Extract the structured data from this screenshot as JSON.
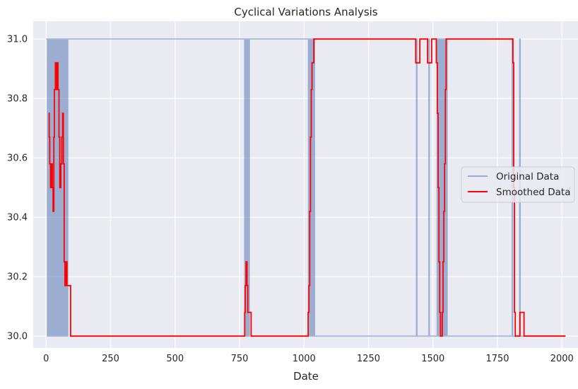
{
  "chart_data": {
    "type": "line",
    "title": "Cyclical Variations Analysis",
    "xlabel": "Date",
    "ylabel": "",
    "xlim": [
      -50,
      2065
    ],
    "ylim": [
      29.96,
      31.06
    ],
    "xticks": [
      0,
      250,
      500,
      750,
      1000,
      1250,
      1500,
      1750,
      2000
    ],
    "yticks": [
      30.0,
      30.2,
      30.4,
      30.6,
      30.8,
      31.0
    ],
    "grid": true,
    "legend_position": "center-right",
    "colors": {
      "plot_background": "#eaeaf2",
      "grid": "#ffffff",
      "original": "#4c72b0",
      "smoothed": "#ff0000"
    },
    "series": [
      {
        "name": "Original Data",
        "style": "alternating",
        "low": 30.0,
        "high": 31.0,
        "start_value": 31.0,
        "x_start": 0,
        "x_end": 2014,
        "flip_x": [
          5,
          9,
          13,
          16,
          19,
          22,
          25,
          28,
          31,
          34,
          37,
          40,
          43,
          46,
          49,
          52,
          55,
          58,
          61,
          64,
          67,
          70,
          73,
          76,
          80,
          84,
          770,
          773,
          776,
          780,
          784,
          788,
          1017,
          1020,
          1023,
          1026,
          1029,
          1032,
          1035,
          1038,
          1041,
          1436,
          1438,
          1484,
          1486,
          1516,
          1519,
          1522,
          1525,
          1528,
          1531,
          1534,
          1537,
          1540,
          1543,
          1546,
          1549,
          1552,
          1555,
          1807,
          1809,
          1836,
          1838
        ]
      },
      {
        "name": "Smoothed Data",
        "style": "step",
        "points": [
          [
            10,
            30.75
          ],
          [
            12,
            30.67
          ],
          [
            14,
            30.58
          ],
          [
            17,
            30.5
          ],
          [
            20,
            30.58
          ],
          [
            24,
            30.5
          ],
          [
            27,
            30.42
          ],
          [
            30,
            30.67
          ],
          [
            32,
            30.83
          ],
          [
            36,
            30.92
          ],
          [
            40,
            30.83
          ],
          [
            43,
            30.92
          ],
          [
            46,
            30.83
          ],
          [
            50,
            30.67
          ],
          [
            53,
            30.5
          ],
          [
            57,
            30.58
          ],
          [
            61,
            30.67
          ],
          [
            64,
            30.75
          ],
          [
            67,
            30.58
          ],
          [
            70,
            30.25
          ],
          [
            73,
            30.17
          ],
          [
            78,
            30.25
          ],
          [
            81,
            30.17
          ],
          [
            90,
            30.17
          ],
          [
            95,
            30.0
          ],
          [
            765,
            30.0
          ],
          [
            770,
            30.08
          ],
          [
            772,
            30.17
          ],
          [
            775,
            30.25
          ],
          [
            779,
            30.17
          ],
          [
            782,
            30.08
          ],
          [
            792,
            30.08
          ],
          [
            795,
            30.0
          ],
          [
            1012,
            30.0
          ],
          [
            1016,
            30.08
          ],
          [
            1019,
            30.17
          ],
          [
            1022,
            30.42
          ],
          [
            1025,
            30.67
          ],
          [
            1028,
            30.83
          ],
          [
            1031,
            30.92
          ],
          [
            1038,
            31.0
          ],
          [
            1430,
            31.0
          ],
          [
            1433,
            30.92
          ],
          [
            1446,
            30.92
          ],
          [
            1449,
            31.0
          ],
          [
            1476,
            31.0
          ],
          [
            1479,
            30.92
          ],
          [
            1492,
            30.92
          ],
          [
            1495,
            31.0
          ],
          [
            1510,
            31.0
          ],
          [
            1513,
            30.92
          ],
          [
            1517,
            30.75
          ],
          [
            1520,
            30.5
          ],
          [
            1523,
            30.25
          ],
          [
            1526,
            30.08
          ],
          [
            1529,
            30.0
          ],
          [
            1536,
            30.08
          ],
          [
            1539,
            30.25
          ],
          [
            1542,
            30.42
          ],
          [
            1545,
            30.58
          ],
          [
            1548,
            30.83
          ],
          [
            1551,
            31.0
          ],
          [
            1807,
            31.0
          ],
          [
            1810,
            30.92
          ],
          [
            1813,
            30.5
          ],
          [
            1816,
            30.08
          ],
          [
            1819,
            30.0
          ],
          [
            1834,
            30.0
          ],
          [
            1837,
            30.08
          ],
          [
            1850,
            30.08
          ],
          [
            1853,
            30.0
          ],
          [
            2014,
            30.0
          ]
        ]
      }
    ]
  }
}
